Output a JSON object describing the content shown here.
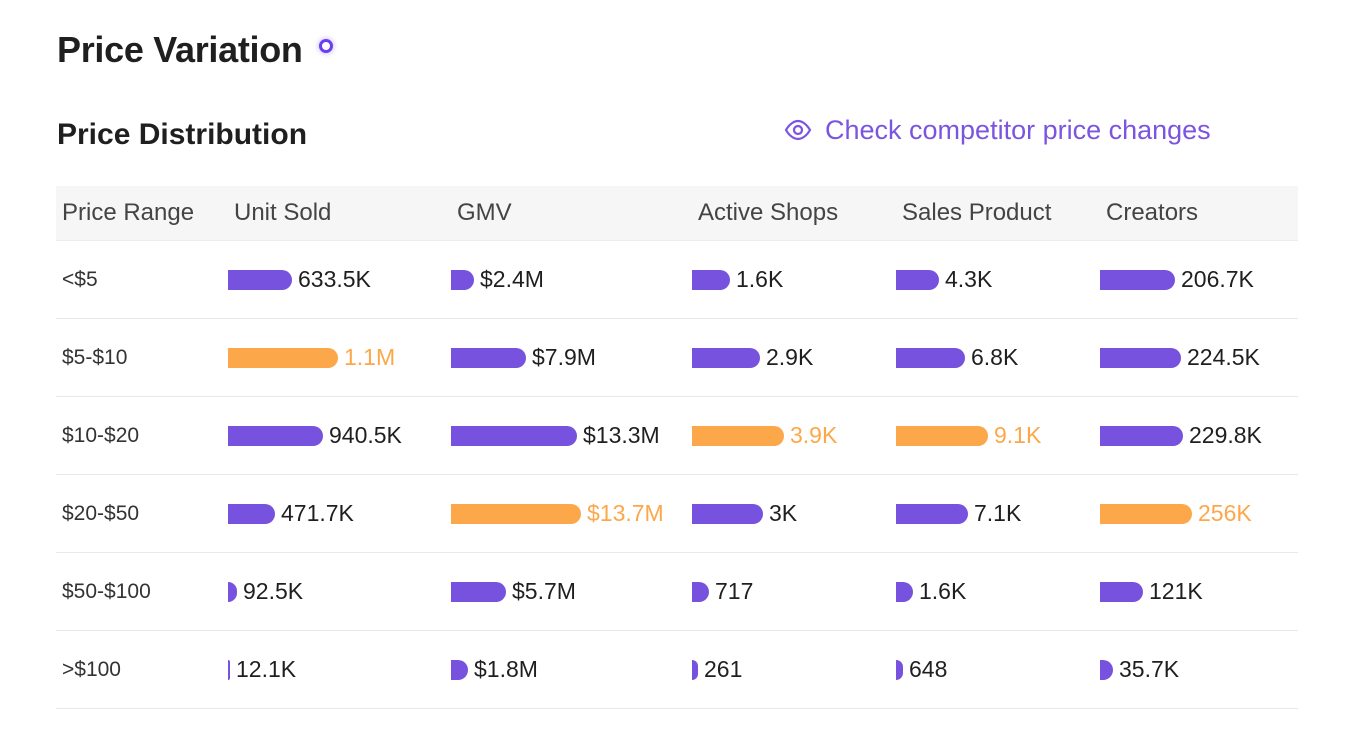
{
  "page_title": "Price Variation",
  "section_title": "Price Distribution",
  "competitor_link": "Check competitor price changes",
  "colors": {
    "accent": "#7652de",
    "highlight": "#fca84a",
    "link": "#7b55e0"
  },
  "columns": [
    "Price Range",
    "Unit Sold",
    "GMV",
    "Active Shops",
    "Sales Product",
    "Creators"
  ],
  "rows": [
    {
      "range": "<$5",
      "cells": [
        {
          "label": "633.5K",
          "fraction": 0.58,
          "highlight": false
        },
        {
          "label": "$2.4M",
          "fraction": 0.18,
          "highlight": false
        },
        {
          "label": "1.6K",
          "fraction": 0.41,
          "highlight": false
        },
        {
          "label": "4.3K",
          "fraction": 0.47,
          "highlight": false
        },
        {
          "label": "206.7K",
          "fraction": 0.81,
          "highlight": false
        }
      ]
    },
    {
      "range": "$5-$10",
      "cells": [
        {
          "label": "1.1M",
          "fraction": 1.0,
          "highlight": true
        },
        {
          "label": "$7.9M",
          "fraction": 0.58,
          "highlight": false
        },
        {
          "label": "2.9K",
          "fraction": 0.74,
          "highlight": false
        },
        {
          "label": "6.8K",
          "fraction": 0.75,
          "highlight": false
        },
        {
          "label": "224.5K",
          "fraction": 0.88,
          "highlight": false
        }
      ]
    },
    {
      "range": "$10-$20",
      "cells": [
        {
          "label": "940.5K",
          "fraction": 0.86,
          "highlight": false
        },
        {
          "label": "$13.3M",
          "fraction": 0.97,
          "highlight": false
        },
        {
          "label": "3.9K",
          "fraction": 1.0,
          "highlight": true
        },
        {
          "label": "9.1K",
          "fraction": 1.0,
          "highlight": true
        },
        {
          "label": "229.8K",
          "fraction": 0.9,
          "highlight": false
        }
      ]
    },
    {
      "range": "$20-$50",
      "cells": [
        {
          "label": "471.7K",
          "fraction": 0.43,
          "highlight": false
        },
        {
          "label": "$13.7M",
          "fraction": 1.0,
          "highlight": true
        },
        {
          "label": "3K",
          "fraction": 0.77,
          "highlight": false
        },
        {
          "label": "7.1K",
          "fraction": 0.78,
          "highlight": false
        },
        {
          "label": "256K",
          "fraction": 1.0,
          "highlight": true
        }
      ]
    },
    {
      "range": "$50-$100",
      "cells": [
        {
          "label": "92.5K",
          "fraction": 0.085,
          "highlight": false
        },
        {
          "label": "$5.7M",
          "fraction": 0.42,
          "highlight": false
        },
        {
          "label": "717",
          "fraction": 0.18,
          "highlight": false
        },
        {
          "label": "1.6K",
          "fraction": 0.18,
          "highlight": false
        },
        {
          "label": "121K",
          "fraction": 0.47,
          "highlight": false
        }
      ]
    },
    {
      "range": ">$100",
      "cells": [
        {
          "label": "12.1K",
          "fraction": 0.011,
          "highlight": false
        },
        {
          "label": "$1.8M",
          "fraction": 0.13,
          "highlight": false
        },
        {
          "label": "261",
          "fraction": 0.067,
          "highlight": false
        },
        {
          "label": "648",
          "fraction": 0.071,
          "highlight": false
        },
        {
          "label": "35.7K",
          "fraction": 0.14,
          "highlight": false
        }
      ]
    }
  ]
}
